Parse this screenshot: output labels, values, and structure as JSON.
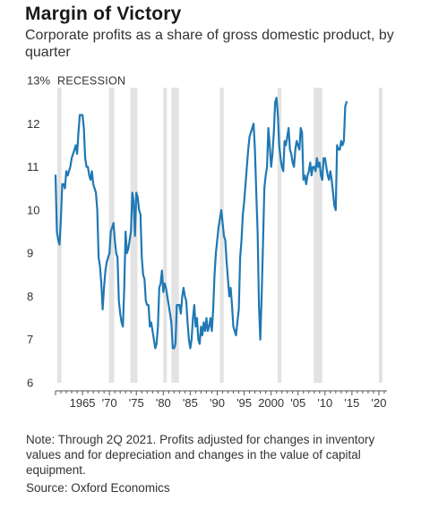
{
  "chart_data": {
    "type": "line",
    "title": "Margin of Victory",
    "subtitle": "Corporate profits as a share of gross domestic product, by quarter",
    "y_unit_label": "13%",
    "recession_label": "RECESSION",
    "ylim": [
      6,
      13
    ],
    "xlim": [
      1960,
      2021.5
    ],
    "y_ticks": [
      6,
      7,
      8,
      9,
      10,
      11,
      12
    ],
    "y_top_tick": 13,
    "x_ticks": [
      {
        "value": 1965,
        "label": "1965"
      },
      {
        "value": 1970,
        "label": "'70"
      },
      {
        "value": 1975,
        "label": "'75"
      },
      {
        "value": 1980,
        "label": "'80"
      },
      {
        "value": 1985,
        "label": "'85"
      },
      {
        "value": 1990,
        "label": "'90"
      },
      {
        "value": 1995,
        "label": "'95"
      },
      {
        "value": 2000,
        "label": "2000"
      },
      {
        "value": 2005,
        "label": "'05"
      },
      {
        "value": 2010,
        "label": "'10"
      },
      {
        "value": 2015,
        "label": "'15"
      },
      {
        "value": 2020,
        "label": "'20"
      }
    ],
    "recessions": [
      [
        1960.3,
        1961.1
      ],
      [
        1969.9,
        1970.9
      ],
      [
        1973.9,
        1975.2
      ],
      [
        1980.0,
        1980.5
      ],
      [
        1981.5,
        1982.9
      ],
      [
        1990.5,
        1991.2
      ],
      [
        2001.2,
        2001.9
      ],
      [
        2007.9,
        2009.5
      ],
      [
        2020.0,
        2020.5
      ]
    ],
    "series": [
      {
        "color": "#1f78b4",
        "points": [
          [
            1960.0,
            10.8
          ],
          [
            1960.25,
            9.5
          ],
          [
            1960.5,
            9.3
          ],
          [
            1960.75,
            9.2
          ],
          [
            1961.0,
            9.8
          ],
          [
            1961.25,
            10.6
          ],
          [
            1961.5,
            10.6
          ],
          [
            1961.75,
            10.5
          ],
          [
            1962.0,
            10.9
          ],
          [
            1962.25,
            10.8
          ],
          [
            1962.5,
            10.9
          ],
          [
            1962.75,
            11.0
          ],
          [
            1963.0,
            11.2
          ],
          [
            1963.25,
            11.3
          ],
          [
            1963.5,
            11.4
          ],
          [
            1963.75,
            11.5
          ],
          [
            1964.0,
            11.3
          ],
          [
            1964.25,
            11.8
          ],
          [
            1964.5,
            12.2
          ],
          [
            1964.75,
            12.2
          ],
          [
            1965.0,
            12.2
          ],
          [
            1965.25,
            11.9
          ],
          [
            1965.5,
            11.2
          ],
          [
            1965.75,
            11.0
          ],
          [
            1966.0,
            11.0
          ],
          [
            1966.25,
            10.8
          ],
          [
            1966.5,
            10.7
          ],
          [
            1966.75,
            10.9
          ],
          [
            1967.0,
            10.6
          ],
          [
            1967.25,
            10.5
          ],
          [
            1967.5,
            10.4
          ],
          [
            1967.75,
            10.0
          ],
          [
            1968.0,
            8.9
          ],
          [
            1968.25,
            8.7
          ],
          [
            1968.5,
            8.3
          ],
          [
            1968.75,
            7.7
          ],
          [
            1969.0,
            8.2
          ],
          [
            1969.25,
            8.6
          ],
          [
            1969.5,
            8.8
          ],
          [
            1969.75,
            8.9
          ],
          [
            1970.0,
            9.0
          ],
          [
            1970.25,
            9.5
          ],
          [
            1970.5,
            9.6
          ],
          [
            1970.75,
            9.7
          ],
          [
            1971.0,
            9.3
          ],
          [
            1971.25,
            9.0
          ],
          [
            1971.5,
            8.9
          ],
          [
            1971.75,
            7.9
          ],
          [
            1972.0,
            7.6
          ],
          [
            1972.25,
            7.4
          ],
          [
            1972.5,
            7.3
          ],
          [
            1972.75,
            8.2
          ],
          [
            1973.0,
            9.5
          ],
          [
            1973.25,
            9.0
          ],
          [
            1973.5,
            9.1
          ],
          [
            1973.75,
            9.3
          ],
          [
            1974.0,
            9.5
          ],
          [
            1974.25,
            10.4
          ],
          [
            1974.5,
            10.2
          ],
          [
            1974.75,
            9.4
          ],
          [
            1975.0,
            10.4
          ],
          [
            1975.25,
            10.3
          ],
          [
            1975.5,
            10.0
          ],
          [
            1975.75,
            9.9
          ],
          [
            1976.0,
            8.9
          ],
          [
            1976.25,
            8.5
          ],
          [
            1976.5,
            8.4
          ],
          [
            1976.75,
            7.9
          ],
          [
            1977.0,
            7.8
          ],
          [
            1977.25,
            7.8
          ],
          [
            1977.5,
            7.3
          ],
          [
            1977.75,
            7.4
          ],
          [
            1978.0,
            7.2
          ],
          [
            1978.25,
            7.0
          ],
          [
            1978.5,
            6.8
          ],
          [
            1978.75,
            6.9
          ],
          [
            1979.0,
            7.3
          ],
          [
            1979.25,
            8.2
          ],
          [
            1979.5,
            8.3
          ],
          [
            1979.75,
            8.6
          ],
          [
            1980.0,
            8.1
          ],
          [
            1980.25,
            8.3
          ],
          [
            1980.5,
            8.2
          ],
          [
            1980.75,
            8.0
          ],
          [
            1981.0,
            7.8
          ],
          [
            1981.25,
            7.6
          ],
          [
            1981.5,
            7.4
          ],
          [
            1981.75,
            6.8
          ],
          [
            1982.0,
            6.8
          ],
          [
            1982.25,
            6.9
          ],
          [
            1982.5,
            7.8
          ],
          [
            1982.75,
            7.8
          ],
          [
            1983.0,
            7.8
          ],
          [
            1983.25,
            7.6
          ],
          [
            1983.5,
            8.0
          ],
          [
            1983.75,
            8.2
          ],
          [
            1984.0,
            8.0
          ],
          [
            1984.25,
            7.9
          ],
          [
            1984.5,
            7.4
          ],
          [
            1984.75,
            7.0
          ],
          [
            1985.0,
            6.8
          ],
          [
            1985.25,
            7.0
          ],
          [
            1985.5,
            7.5
          ],
          [
            1985.75,
            7.8
          ],
          [
            1986.0,
            7.3
          ],
          [
            1986.25,
            7.5
          ],
          [
            1986.5,
            7.0
          ],
          [
            1986.75,
            6.9
          ],
          [
            1987.0,
            7.3
          ],
          [
            1987.25,
            7.1
          ],
          [
            1987.5,
            7.4
          ],
          [
            1987.75,
            7.2
          ],
          [
            1988.0,
            7.5
          ],
          [
            1988.25,
            7.2
          ],
          [
            1988.5,
            7.3
          ],
          [
            1988.75,
            7.5
          ],
          [
            1989.0,
            7.2
          ],
          [
            1989.25,
            7.7
          ],
          [
            1989.5,
            8.5
          ],
          [
            1989.75,
            9.0
          ],
          [
            1990.0,
            9.3
          ],
          [
            1990.25,
            9.6
          ],
          [
            1990.5,
            9.8
          ],
          [
            1990.75,
            10.0
          ],
          [
            1991.0,
            9.7
          ],
          [
            1991.25,
            9.4
          ],
          [
            1991.5,
            9.3
          ],
          [
            1991.75,
            8.8
          ],
          [
            1992.0,
            8.4
          ],
          [
            1992.25,
            8.0
          ],
          [
            1992.5,
            8.2
          ],
          [
            1992.75,
            7.8
          ],
          [
            1993.0,
            7.3
          ],
          [
            1993.25,
            7.2
          ],
          [
            1993.5,
            7.1
          ],
          [
            1993.75,
            7.4
          ],
          [
            1994.0,
            7.7
          ],
          [
            1994.25,
            8.9
          ],
          [
            1994.5,
            9.3
          ],
          [
            1994.75,
            9.9
          ],
          [
            1995.0,
            10.2
          ],
          [
            1995.25,
            10.6
          ],
          [
            1995.5,
            11.0
          ],
          [
            1995.75,
            11.4
          ],
          [
            1996.0,
            11.7
          ],
          [
            1996.25,
            11.8
          ],
          [
            1996.5,
            11.9
          ],
          [
            1996.75,
            12.0
          ],
          [
            1997.0,
            11.4
          ],
          [
            1997.25,
            10.4
          ],
          [
            1997.5,
            9.5
          ],
          [
            1997.75,
            7.8
          ],
          [
            1998.0,
            7.0
          ],
          [
            1998.25,
            8.0
          ],
          [
            1998.5,
            9.2
          ],
          [
            1998.75,
            10.5
          ],
          [
            1999.0,
            10.8
          ],
          [
            1999.25,
            11.0
          ],
          [
            1999.5,
            11.9
          ],
          [
            1999.75,
            11.5
          ],
          [
            2000.0,
            11.0
          ],
          [
            2000.25,
            11.3
          ],
          [
            2000.5,
            11.8
          ],
          [
            2000.75,
            12.5
          ],
          [
            2001.0,
            12.6
          ],
          [
            2001.25,
            12.2
          ],
          [
            2001.5,
            11.5
          ],
          [
            2001.75,
            11.2
          ],
          [
            2002.0,
            11.0
          ],
          [
            2002.25,
            10.9
          ],
          [
            2002.5,
            11.6
          ],
          [
            2002.75,
            11.5
          ],
          [
            2003.0,
            11.7
          ],
          [
            2003.25,
            11.9
          ],
          [
            2003.5,
            11.4
          ],
          [
            2003.75,
            11.3
          ],
          [
            2004.0,
            11.1
          ],
          [
            2004.25,
            11.0
          ],
          [
            2004.5,
            11.4
          ],
          [
            2004.75,
            11.6
          ],
          [
            2005.0,
            11.5
          ],
          [
            2005.25,
            11.4
          ],
          [
            2005.5,
            11.9
          ],
          [
            2005.75,
            11.8
          ],
          [
            2006.0,
            10.7
          ],
          [
            2006.25,
            10.8
          ],
          [
            2006.5,
            10.6
          ],
          [
            2006.75,
            10.8
          ],
          [
            2007.0,
            10.9
          ],
          [
            2007.25,
            11.1
          ],
          [
            2007.5,
            10.8
          ],
          [
            2007.75,
            11.0
          ],
          [
            2008.0,
            11.0
          ],
          [
            2008.25,
            10.9
          ],
          [
            2008.5,
            11.2
          ],
          [
            2008.75,
            11.0
          ],
          [
            2009.0,
            11.1
          ],
          [
            2009.25,
            10.8
          ],
          [
            2009.5,
            10.7
          ],
          [
            2009.75,
            11.2
          ],
          [
            2010.0,
            11.2
          ],
          [
            2010.25,
            11.0
          ],
          [
            2010.5,
            10.8
          ],
          [
            2010.75,
            10.7
          ],
          [
            2011.0,
            10.9
          ],
          [
            2011.25,
            10.7
          ],
          [
            2011.5,
            10.4
          ],
          [
            2011.75,
            10.1
          ],
          [
            2012.0,
            10.0
          ],
          [
            2012.25,
            11.5
          ],
          [
            2012.5,
            11.4
          ],
          [
            2012.75,
            11.4
          ],
          [
            2013.0,
            11.6
          ],
          [
            2013.25,
            11.5
          ],
          [
            2013.5,
            11.6
          ],
          [
            2013.75,
            12.4
          ],
          [
            2014.0,
            12.5
          ]
        ]
      }
    ],
    "note": "Note: Through 2Q 2021. Profits adjusted for changes in inventory values and for depreciation and changes in the value of capital equipment.",
    "source": "Source: Oxford Economics"
  }
}
